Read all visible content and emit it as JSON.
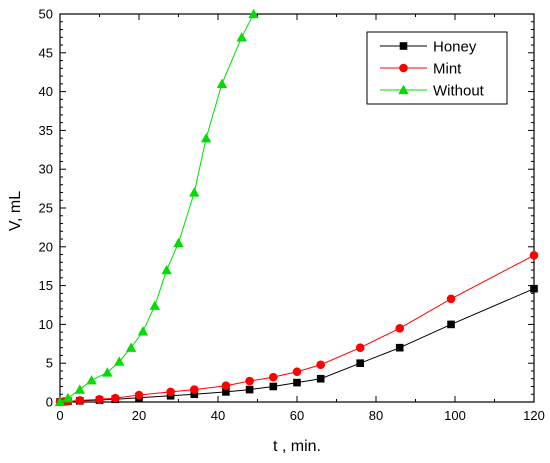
{
  "chart_data": {
    "type": "line",
    "xlabel": "t , min.",
    "ylabel": "V, mL",
    "xlim": [
      0,
      120
    ],
    "ylim": [
      0,
      50
    ],
    "xticks": [
      0,
      20,
      40,
      60,
      80,
      100,
      120
    ],
    "yticks": [
      0,
      5,
      10,
      15,
      20,
      25,
      30,
      35,
      40,
      45,
      50
    ],
    "grid": false,
    "legend_position": "top-right",
    "series": [
      {
        "name": "Honey",
        "color": "#000000",
        "marker": "square",
        "x": [
          0,
          1,
          2,
          5,
          10,
          14,
          20,
          28,
          34,
          42,
          48,
          54,
          60,
          66,
          76,
          86,
          99,
          120
        ],
        "y": [
          0,
          0.05,
          0.1,
          0.15,
          0.25,
          0.35,
          0.55,
          0.8,
          1.0,
          1.3,
          1.6,
          2.0,
          2.5,
          3.0,
          5.0,
          7.0,
          10.0,
          14.6
        ]
      },
      {
        "name": "Mint",
        "color": "#ff0000",
        "marker": "circle",
        "x": [
          0,
          1,
          2,
          5,
          10,
          14,
          20,
          28,
          34,
          42,
          48,
          54,
          60,
          66,
          76,
          86,
          99,
          120
        ],
        "y": [
          0,
          0.05,
          0.1,
          0.2,
          0.35,
          0.5,
          0.9,
          1.3,
          1.6,
          2.1,
          2.7,
          3.2,
          3.9,
          4.8,
          7.0,
          9.5,
          13.3,
          18.9
        ]
      },
      {
        "name": "Without",
        "color": "#00dd00",
        "marker": "triangle",
        "x": [
          0,
          2,
          5,
          8,
          12,
          15,
          18,
          21,
          24,
          27,
          30,
          34,
          37,
          41,
          46,
          49
        ],
        "y": [
          0,
          0.5,
          1.6,
          2.8,
          3.8,
          5.2,
          7.0,
          9.1,
          12.4,
          17.0,
          20.5,
          27.0,
          34.0,
          41.0,
          47.0,
          50.0
        ]
      }
    ]
  }
}
